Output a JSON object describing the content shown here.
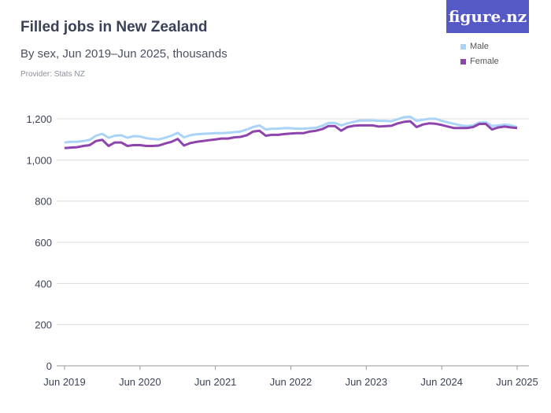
{
  "title": "Filled jobs in New Zealand",
  "subtitle": "By sex, Jun 2019–Jun 2025, thousands",
  "provider": "Provider: Stats NZ",
  "logo": "figure.nz",
  "colors": {
    "male": "#a9d4f7",
    "female": "#8e44ad",
    "logo_bg": "#5459c5"
  },
  "chart_data": {
    "type": "line",
    "title": "Filled jobs in New Zealand",
    "xlabel": "",
    "ylabel": "",
    "ylim": [
      0,
      1200
    ],
    "yticks": [
      "0",
      "200",
      "400",
      "600",
      "800",
      "1,000",
      "1,200"
    ],
    "ytick_values": [
      0,
      200,
      400,
      600,
      800,
      1000,
      1200
    ],
    "xticks": [
      "Jun 2019",
      "Jun 2020",
      "Jun 2021",
      "Jun 2022",
      "Jun 2023",
      "Jun 2024",
      "Jun 2025"
    ],
    "x_start": "Jun 2019",
    "x_end": "Jun 2025",
    "frequency": "monthly",
    "grid": true,
    "legend": "top-right",
    "series": [
      {
        "name": "Male",
        "values": [
          1085,
          1088,
          1088,
          1092,
          1098,
          1118,
          1127,
          1108,
          1118,
          1120,
          1108,
          1116,
          1114,
          1106,
          1102,
          1100,
          1108,
          1118,
          1132,
          1110,
          1120,
          1125,
          1127,
          1128,
          1130,
          1130,
          1132,
          1135,
          1138,
          1148,
          1160,
          1168,
          1148,
          1152,
          1152,
          1155,
          1154,
          1152,
          1152,
          1154,
          1156,
          1166,
          1180,
          1180,
          1168,
          1178,
          1185,
          1192,
          1192,
          1192,
          1190,
          1190,
          1188,
          1198,
          1208,
          1210,
          1190,
          1195,
          1200,
          1200,
          1190,
          1182,
          1175,
          1168,
          1165,
          1168,
          1182,
          1183,
          1165,
          1168,
          1172,
          1168,
          1160
        ]
      },
      {
        "name": "Female",
        "values": [
          1058,
          1060,
          1062,
          1068,
          1072,
          1092,
          1098,
          1068,
          1085,
          1085,
          1068,
          1072,
          1072,
          1068,
          1068,
          1070,
          1080,
          1088,
          1102,
          1070,
          1082,
          1088,
          1092,
          1096,
          1100,
          1104,
          1104,
          1110,
          1112,
          1120,
          1138,
          1142,
          1118,
          1122,
          1122,
          1126,
          1128,
          1130,
          1130,
          1138,
          1142,
          1150,
          1165,
          1165,
          1142,
          1160,
          1166,
          1168,
          1168,
          1168,
          1162,
          1164,
          1166,
          1178,
          1185,
          1188,
          1160,
          1172,
          1178,
          1176,
          1170,
          1162,
          1155,
          1155,
          1155,
          1160,
          1175,
          1175,
          1148,
          1158,
          1162,
          1158,
          1155
        ]
      }
    ]
  }
}
